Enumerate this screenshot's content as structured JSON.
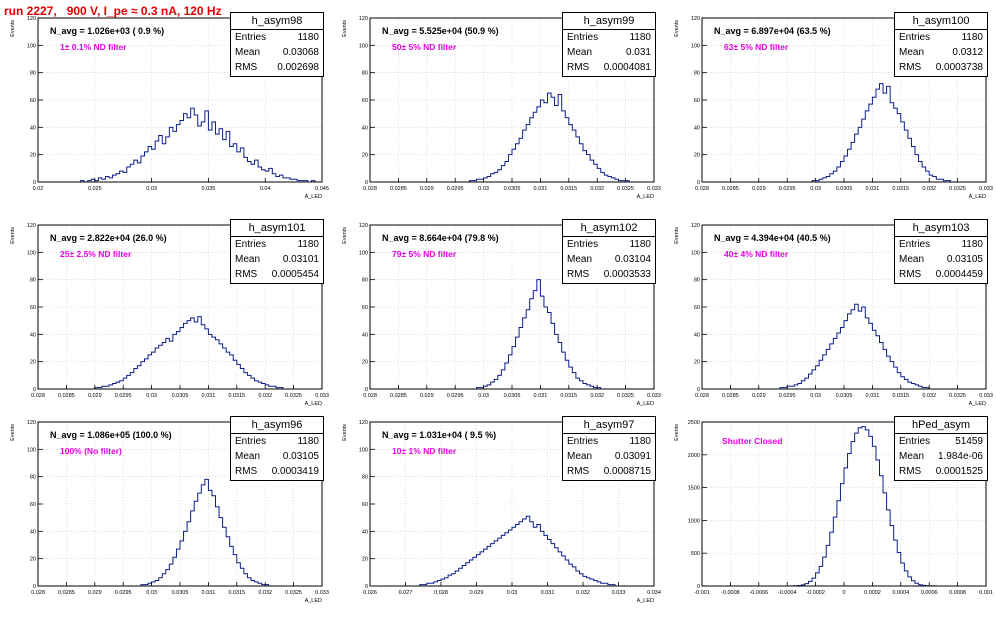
{
  "page_title": "run 2227,   900 V, I_pe ≈ 0.3 nA, 120 Hz",
  "colors": {
    "histogram": "#0a1e8c",
    "title": "#e00000",
    "filter_label": "#e600e6"
  },
  "chart_data": [
    {
      "type": "bar",
      "name": "h_asym98",
      "navg_label": "N_avg = 1.026e+03 ( 0.9 %)",
      "filter_label": "1± 0.1% ND filter",
      "stats": {
        "entries_label": "Entries",
        "entries": "1180",
        "mean_label": "Mean",
        "mean": "0.03068",
        "rms_label": "RMS",
        "rms": "0.002698"
      },
      "ylabel": "Events",
      "xlabel": "A_LED",
      "xlim": [
        0.018,
        0.045
      ],
      "ylim": [
        0,
        120
      ],
      "xticks": [
        "0.02",
        "0.025",
        "0.03",
        "0.035",
        "0.04",
        "0.045"
      ],
      "yticks": [
        "0",
        "20",
        "40",
        "60",
        "80",
        "100",
        "120"
      ],
      "counts": [
        0,
        0,
        0,
        0,
        0,
        0,
        0,
        0,
        0,
        0,
        0,
        0,
        1,
        0,
        1,
        2,
        1,
        3,
        2,
        4,
        3,
        5,
        6,
        8,
        7,
        11,
        13,
        16,
        14,
        19,
        22,
        26,
        24,
        30,
        34,
        28,
        33,
        40,
        37,
        42,
        45,
        50,
        47,
        54,
        49,
        41,
        44,
        52,
        38,
        44,
        35,
        39,
        31,
        37,
        26,
        28,
        22,
        25,
        18,
        15,
        13,
        16,
        11,
        9,
        8,
        10,
        6,
        4,
        5,
        3,
        3,
        2,
        2,
        1,
        1,
        1,
        0,
        1,
        0,
        0
      ]
    },
    {
      "type": "bar",
      "name": "h_asym99",
      "navg_label": "N_avg = 5.525e+04 (50.9 %)",
      "filter_label": "50± 5% ND filter",
      "stats": {
        "entries_label": "Entries",
        "entries": "1180",
        "mean_label": "Mean",
        "mean": "0.031",
        "rms_label": "RMS",
        "rms": "0.0004081"
      },
      "ylabel": "Events",
      "xlabel": "A_LED",
      "xlim": [
        0.028,
        0.033
      ],
      "ylim": [
        0,
        120
      ],
      "xticks": [
        "0.028",
        "0.0285",
        "0.029",
        "0.0295",
        "0.03",
        "0.0305",
        "0.031",
        "0.0315",
        "0.032",
        "0.0325",
        "0.033"
      ],
      "yticks": [
        "0",
        "20",
        "40",
        "60",
        "80",
        "100",
        "120"
      ],
      "counts": [
        0,
        0,
        0,
        0,
        0,
        0,
        0,
        0,
        0,
        0,
        0,
        0,
        0,
        0,
        0,
        0,
        0,
        0,
        0,
        0,
        0,
        0,
        0,
        0,
        0,
        0,
        0,
        0,
        1,
        1,
        2,
        2,
        3,
        4,
        6,
        7,
        9,
        12,
        15,
        20,
        24,
        28,
        32,
        38,
        42,
        47,
        51,
        55,
        60,
        58,
        65,
        62,
        56,
        64,
        52,
        47,
        42,
        38,
        33,
        28,
        23,
        20,
        16,
        13,
        10,
        7,
        5,
        4,
        3,
        2,
        1,
        1,
        1,
        0,
        0,
        0,
        0,
        0,
        0,
        0
      ]
    },
    {
      "type": "bar",
      "name": "h_asym100",
      "navg_label": "N_avg = 6.897e+04 (63.5 %)",
      "filter_label": "63± 5% ND filter",
      "stats": {
        "entries_label": "Entries",
        "entries": "1180",
        "mean_label": "Mean",
        "mean": "0.0312",
        "rms_label": "RMS",
        "rms": "0.0003738"
      },
      "ylabel": "Events",
      "xlabel": "A_LED",
      "xlim": [
        0.028,
        0.033
      ],
      "ylim": [
        0,
        120
      ],
      "xticks": [
        "0.028",
        "0.0285",
        "0.029",
        "0.0295",
        "0.03",
        "0.0305",
        "0.031",
        "0.0315",
        "0.032",
        "0.0325",
        "0.033"
      ],
      "yticks": [
        "0",
        "20",
        "40",
        "60",
        "80",
        "100",
        "120"
      ],
      "counts": [
        0,
        0,
        0,
        0,
        0,
        0,
        0,
        0,
        0,
        0,
        0,
        0,
        0,
        0,
        0,
        0,
        0,
        0,
        0,
        0,
        0,
        0,
        0,
        0,
        0,
        0,
        0,
        0,
        0,
        0,
        0,
        1,
        1,
        2,
        3,
        4,
        6,
        8,
        11,
        15,
        19,
        24,
        29,
        35,
        40,
        46,
        52,
        57,
        62,
        68,
        72,
        65,
        70,
        58,
        54,
        50,
        44,
        38,
        32,
        26,
        20,
        15,
        11,
        8,
        5,
        4,
        2,
        2,
        1,
        1,
        0,
        0,
        0,
        0,
        0,
        0,
        0,
        0,
        0,
        0
      ]
    },
    {
      "type": "bar",
      "name": "h_asym101",
      "navg_label": "N_avg = 2.822e+04 (26.0 %)",
      "filter_label": "25± 2.5% ND filter",
      "stats": {
        "entries_label": "Entries",
        "entries": "1180",
        "mean_label": "Mean",
        "mean": "0.03101",
        "rms_label": "RMS",
        "rms": "0.0005454"
      },
      "ylabel": "Events",
      "xlabel": "A_LED",
      "xlim": [
        0.028,
        0.033
      ],
      "ylim": [
        0,
        120
      ],
      "xticks": [
        "0.028",
        "0.0285",
        "0.029",
        "0.0295",
        "0.03",
        "0.0305",
        "0.031",
        "0.0315",
        "0.032",
        "0.0325",
        "0.033"
      ],
      "yticks": [
        "0",
        "20",
        "40",
        "60",
        "80",
        "100",
        "120"
      ],
      "counts": [
        0,
        0,
        0,
        0,
        0,
        0,
        0,
        0,
        0,
        0,
        0,
        0,
        0,
        0,
        0,
        0,
        1,
        1,
        2,
        2,
        3,
        4,
        5,
        6,
        8,
        10,
        12,
        15,
        17,
        20,
        22,
        25,
        27,
        30,
        32,
        34,
        37,
        35,
        40,
        42,
        45,
        48,
        50,
        52,
        49,
        53,
        47,
        44,
        40,
        38,
        36,
        33,
        30,
        27,
        25,
        21,
        18,
        15,
        12,
        10,
        8,
        6,
        5,
        4,
        3,
        2,
        2,
        1,
        1,
        0,
        0,
        0,
        0,
        0,
        0,
        0,
        0,
        0,
        0,
        0
      ]
    },
    {
      "type": "bar",
      "name": "h_asym102",
      "navg_label": "N_avg = 8.664e+04 (79.8 %)",
      "filter_label": "79± 5% ND filter",
      "stats": {
        "entries_label": "Entries",
        "entries": "1180",
        "mean_label": "Mean",
        "mean": "0.03104",
        "rms_label": "RMS",
        "rms": "0.0003533"
      },
      "ylabel": "Events",
      "xlabel": "A_LED",
      "xlim": [
        0.028,
        0.033
      ],
      "ylim": [
        0,
        120
      ],
      "xticks": [
        "0.028",
        "0.0285",
        "0.029",
        "0.0295",
        "0.03",
        "0.0305",
        "0.031",
        "0.0315",
        "0.032",
        "0.0325",
        "0.033"
      ],
      "yticks": [
        "0",
        "20",
        "40",
        "60",
        "80",
        "100",
        "120"
      ],
      "counts": [
        0,
        0,
        0,
        0,
        0,
        0,
        0,
        0,
        0,
        0,
        0,
        0,
        0,
        0,
        0,
        0,
        0,
        0,
        0,
        0,
        0,
        0,
        0,
        0,
        0,
        0,
        0,
        0,
        0,
        0,
        1,
        1,
        2,
        3,
        5,
        7,
        10,
        14,
        19,
        25,
        31,
        38,
        45,
        52,
        58,
        66,
        72,
        80,
        68,
        60,
        56,
        48,
        40,
        34,
        27,
        21,
        16,
        12,
        8,
        6,
        4,
        3,
        2,
        1,
        1,
        0,
        0,
        0,
        0,
        0,
        0,
        0,
        0,
        0,
        0,
        0,
        0,
        0,
        0,
        0
      ]
    },
    {
      "type": "bar",
      "name": "h_asym103",
      "navg_label": "N_avg = 4.394e+04 (40.5 %)",
      "filter_label": "40± 4% ND filter",
      "stats": {
        "entries_label": "Entries",
        "entries": "1180",
        "mean_label": "Mean",
        "mean": "0.03105",
        "rms_label": "RMS",
        "rms": "0.0004459"
      },
      "ylabel": "Events",
      "xlabel": "A_LED",
      "xlim": [
        0.028,
        0.033
      ],
      "ylim": [
        0,
        120
      ],
      "xticks": [
        "0.028",
        "0.0285",
        "0.029",
        "0.0295",
        "0.03",
        "0.0305",
        "0.031",
        "0.0315",
        "0.032",
        "0.0325",
        "0.033"
      ],
      "yticks": [
        "0",
        "20",
        "40",
        "60",
        "80",
        "100",
        "120"
      ],
      "counts": [
        0,
        0,
        0,
        0,
        0,
        0,
        0,
        0,
        0,
        0,
        0,
        0,
        0,
        0,
        0,
        0,
        0,
        0,
        0,
        0,
        0,
        0,
        1,
        1,
        2,
        2,
        3,
        4,
        6,
        8,
        11,
        14,
        17,
        21,
        25,
        29,
        33,
        37,
        41,
        45,
        50,
        55,
        58,
        62,
        57,
        60,
        52,
        48,
        43,
        39,
        34,
        29,
        24,
        20,
        16,
        12,
        9,
        7,
        5,
        4,
        3,
        2,
        1,
        1,
        0,
        0,
        0,
        0,
        0,
        0,
        0,
        0,
        0,
        0,
        0,
        0,
        0,
        0,
        0,
        0
      ]
    },
    {
      "type": "bar",
      "name": "h_asym96",
      "navg_label": "N_avg = 1.086e+05 (100.0 %)",
      "filter_label": "100% (No filter)",
      "stats": {
        "entries_label": "Entries",
        "entries": "1180",
        "mean_label": "Mean",
        "mean": "0.03105",
        "rms_label": "RMS",
        "rms": "0.0003419"
      },
      "ylabel": "Events",
      "xlabel": "A_LED",
      "xlim": [
        0.028,
        0.033
      ],
      "ylim": [
        0,
        120
      ],
      "xticks": [
        "0.028",
        "0.0285",
        "0.029",
        "0.0295",
        "0.03",
        "0.0305",
        "0.031",
        "0.0315",
        "0.032",
        "0.0325",
        "0.033"
      ],
      "yticks": [
        "0",
        "20",
        "40",
        "60",
        "80",
        "100",
        "120"
      ],
      "counts": [
        0,
        0,
        0,
        0,
        0,
        0,
        0,
        0,
        0,
        0,
        0,
        0,
        0,
        0,
        0,
        0,
        0,
        0,
        0,
        0,
        0,
        0,
        0,
        0,
        0,
        0,
        0,
        0,
        0,
        1,
        1,
        2,
        3,
        4,
        6,
        9,
        12,
        16,
        21,
        27,
        33,
        40,
        47,
        55,
        62,
        68,
        74,
        78,
        70,
        66,
        58,
        50,
        43,
        36,
        29,
        23,
        17,
        13,
        9,
        6,
        4,
        3,
        2,
        1,
        1,
        0,
        0,
        0,
        0,
        0,
        0,
        0,
        0,
        0,
        0,
        0,
        0,
        0,
        0,
        0
      ]
    },
    {
      "type": "bar",
      "name": "h_asym97",
      "navg_label": "N_avg = 1.031e+04 ( 9.5 %)",
      "filter_label": "10± 1% ND filter",
      "stats": {
        "entries_label": "Entries",
        "entries": "1180",
        "mean_label": "Mean",
        "mean": "0.03091",
        "rms_label": "RMS",
        "rms": "0.0008715"
      },
      "ylabel": "Events",
      "xlabel": "A_LED",
      "xlim": [
        0.026,
        0.034
      ],
      "ylim": [
        0,
        120
      ],
      "xticks": [
        "0.026",
        "0.027",
        "0.028",
        "0.029",
        "0.03",
        "0.031",
        "0.032",
        "0.033",
        "0.034"
      ],
      "yticks": [
        "0",
        "20",
        "40",
        "60",
        "80",
        "100",
        "120"
      ],
      "counts": [
        0,
        0,
        0,
        0,
        0,
        0,
        0,
        0,
        0,
        0,
        0,
        0,
        0,
        0,
        1,
        1,
        2,
        2,
        3,
        4,
        5,
        6,
        8,
        9,
        11,
        13,
        15,
        17,
        19,
        21,
        23,
        25,
        27,
        29,
        31,
        33,
        35,
        37,
        39,
        41,
        43,
        45,
        47,
        49,
        51,
        47,
        43,
        45,
        40,
        37,
        34,
        31,
        28,
        25,
        22,
        19,
        16,
        14,
        11,
        9,
        7,
        6,
        5,
        4,
        3,
        2,
        2,
        1,
        1,
        0,
        0,
        0,
        0,
        0,
        0,
        0,
        0,
        0,
        0,
        0
      ]
    },
    {
      "type": "bar",
      "name": "hPed_asym",
      "navg_label": "",
      "filter_label": "Shutter Closed",
      "stats": {
        "entries_label": "Entries",
        "entries": "51459",
        "mean_label": "Mean",
        "mean": "1.984e-06",
        "rms_label": "RMS",
        "rms": "0.0001525"
      },
      "ylabel": "Events",
      "xlabel": "",
      "xlim": [
        -0.001,
        0.001
      ],
      "ylim": [
        0,
        2500
      ],
      "xticks": [
        "-0.001",
        "-0.0008",
        "-0.0006",
        "-0.0004",
        "-0.0002",
        "0",
        "0.0002",
        "0.0004",
        "0.0006",
        "0.0008",
        "0.001"
      ],
      "yticks": [
        "0",
        "500",
        "1000",
        "1500",
        "2000",
        "2500"
      ],
      "counts": [
        0,
        0,
        0,
        0,
        0,
        0,
        0,
        0,
        0,
        0,
        0,
        0,
        0,
        0,
        0,
        0,
        0,
        0,
        0,
        0,
        0,
        0,
        0,
        0,
        0,
        1,
        3,
        8,
        18,
        36,
        70,
        120,
        200,
        300,
        440,
        620,
        820,
        1050,
        1300,
        1560,
        1800,
        2020,
        2200,
        2330,
        2410,
        2430,
        2380,
        2280,
        2130,
        1920,
        1680,
        1420,
        1160,
        920,
        700,
        510,
        350,
        230,
        140,
        80,
        42,
        20,
        9,
        4,
        2,
        1,
        0,
        0,
        0,
        0,
        0,
        0,
        0,
        0,
        0,
        0,
        0,
        0,
        0,
        0
      ]
    }
  ]
}
